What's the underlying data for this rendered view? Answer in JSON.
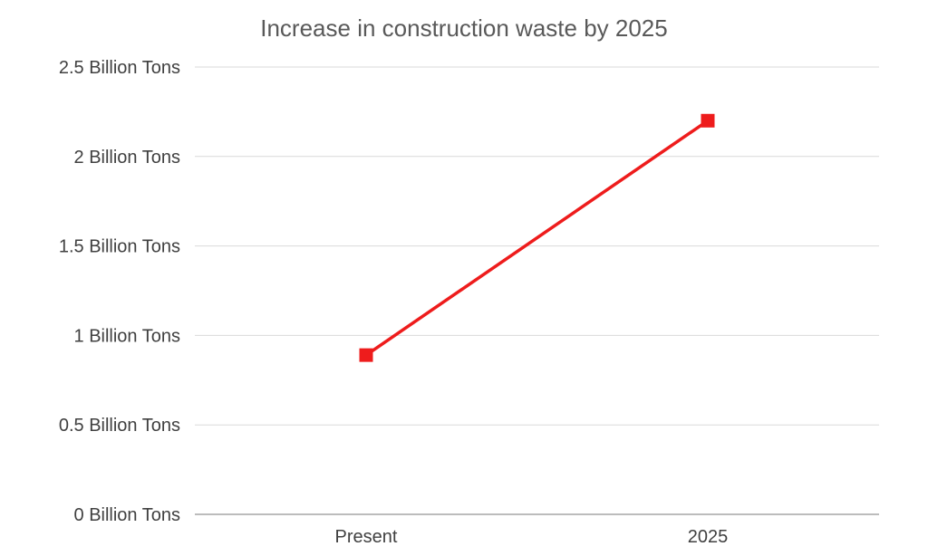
{
  "chart_data": {
    "type": "line",
    "title": "Increase in construction waste by 2025",
    "xlabel": "",
    "ylabel": "",
    "categories": [
      "Present",
      "2025"
    ],
    "series": [
      {
        "values": [
          0.89,
          2.2
        ],
        "color": "#ee1c1c",
        "marker": "square"
      }
    ],
    "ylim": [
      0,
      2.5
    ],
    "y_ticks": [
      {
        "value": 0,
        "label": "0 Billion Tons"
      },
      {
        "value": 0.5,
        "label": "0.5 Billion Tons"
      },
      {
        "value": 1,
        "label": "1 Billion Tons"
      },
      {
        "value": 1.5,
        "label": "1.5 Billion Tons"
      },
      {
        "value": 2,
        "label": "2 Billion Tons"
      },
      {
        "value": 2.5,
        "label": "2.5 Billion Tons"
      }
    ],
    "grid": true,
    "legend": "none"
  }
}
